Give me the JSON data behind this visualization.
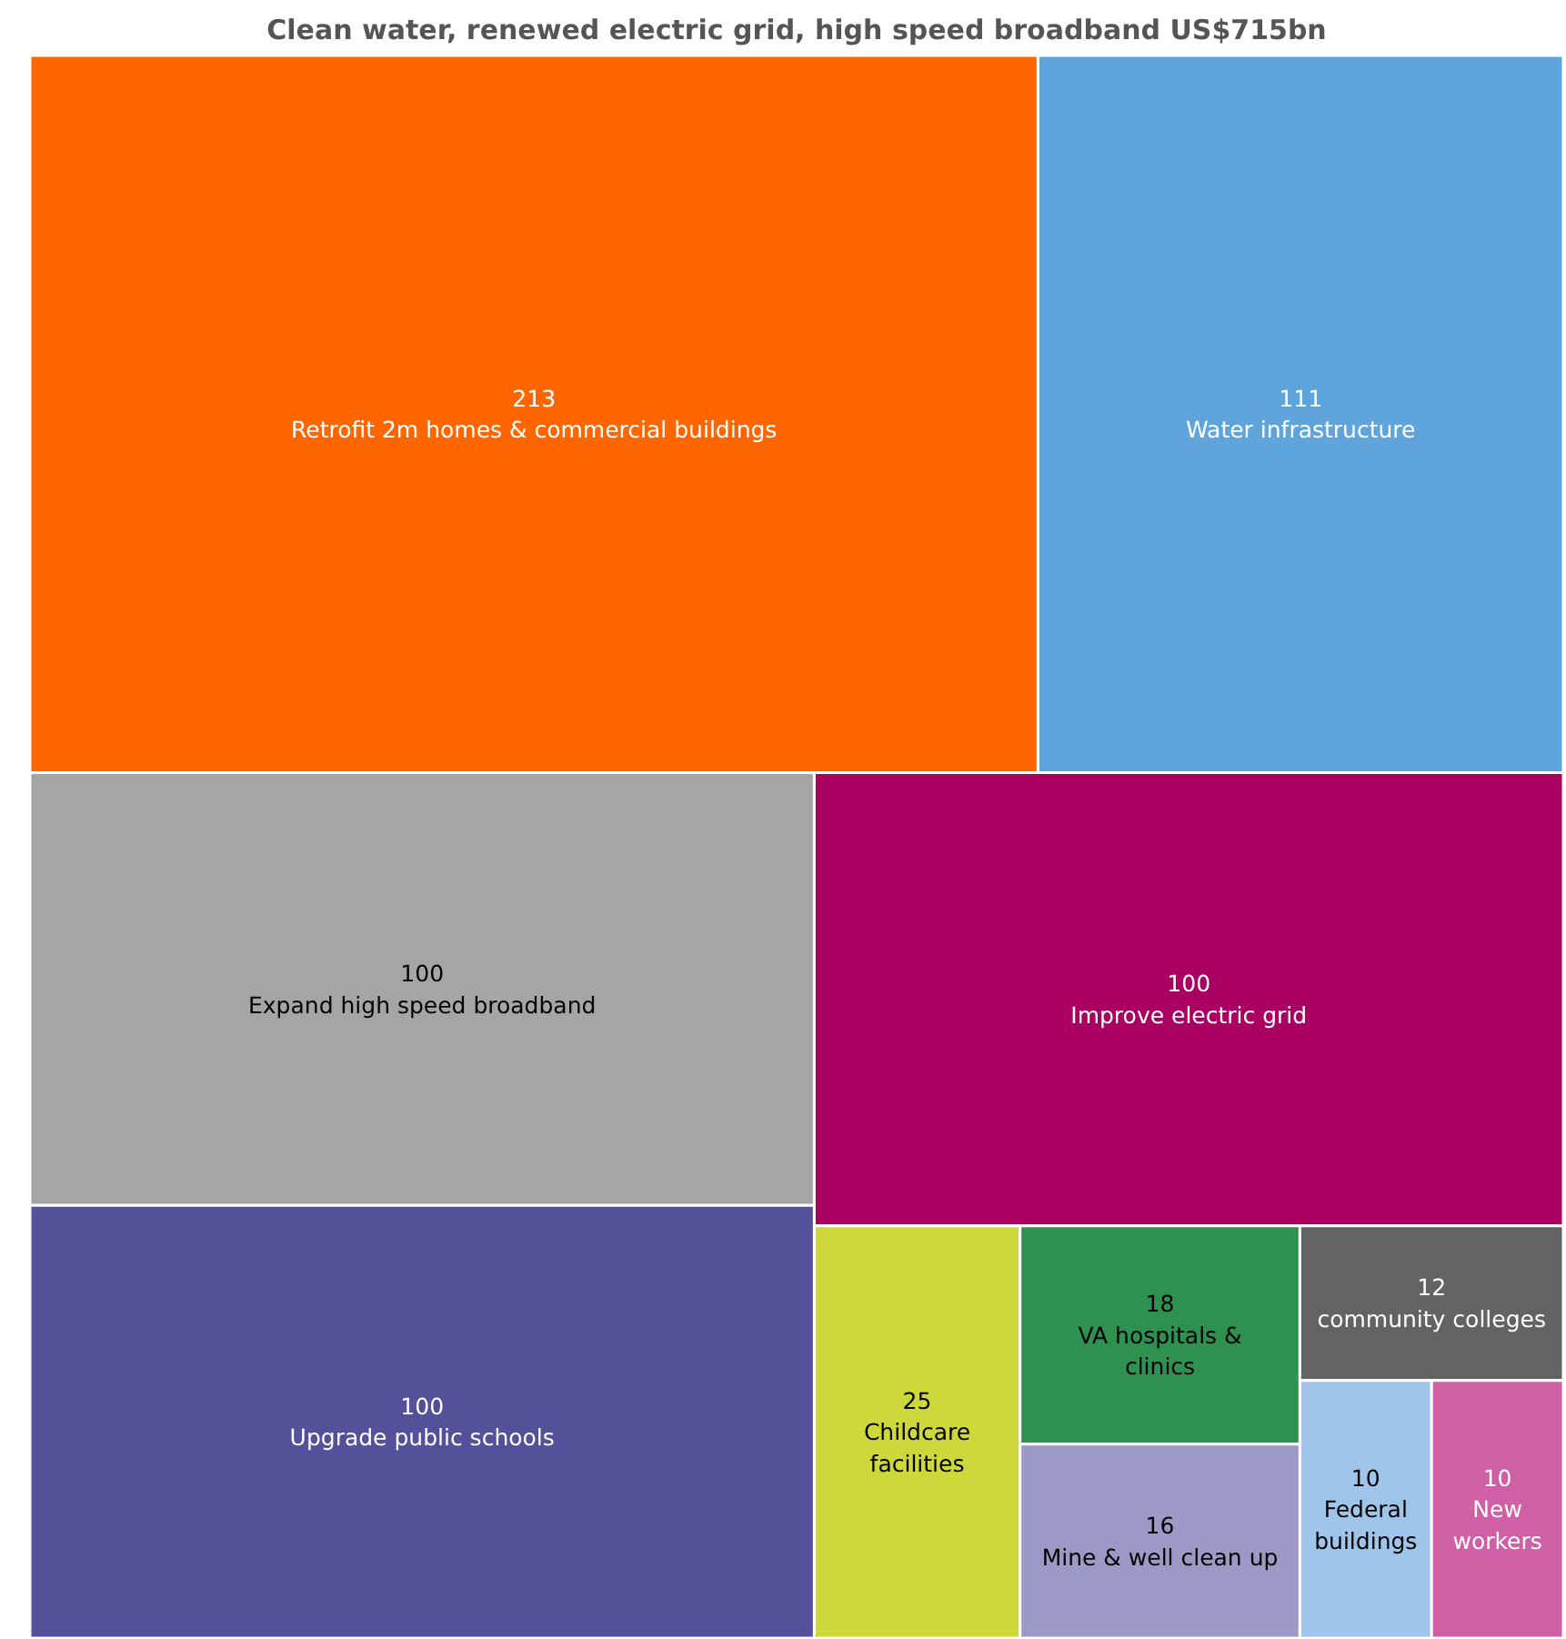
{
  "chart_data": {
    "type": "other",
    "title": "Clean water, renewed electric grid, high speed broadband US$715bn",
    "categories": [
      "Retrofit 2m homes & commercial buildings",
      "Water infrastructure",
      "Expand high speed broadband",
      "Upgrade public schools",
      "Improve electric grid",
      "Childcare facilities",
      "VA hospitals & clinics",
      "Mine & well clean up",
      "community colleges",
      "Federal buildings",
      "New workers"
    ],
    "values": [
      213,
      111,
      100,
      100,
      100,
      25,
      18,
      16,
      12,
      10,
      10
    ],
    "colors": [
      "#ff6600",
      "#5fa4da",
      "#a5a5a5",
      "#55509a",
      "#aa0061",
      "#cfd83a",
      "#2e9150",
      "#9c99c6",
      "#636363",
      "#9fc6ea",
      "#d060a5"
    ],
    "data_labels": true
  }
}
